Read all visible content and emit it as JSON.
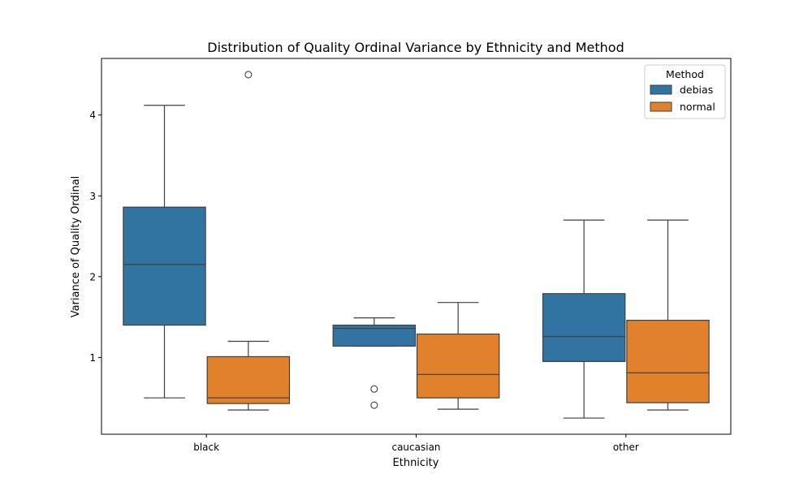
{
  "chart_data": {
    "type": "box",
    "title": "Distribution of Quality Ordinal Variance by Ethnicity and Method",
    "xlabel": "Ethnicity",
    "ylabel": "Variance of Quality Ordinal",
    "categories": [
      "black",
      "caucasian",
      "other"
    ],
    "ylim": [
      0.05,
      4.7
    ],
    "yticks": [
      1,
      2,
      3,
      4
    ],
    "legend": {
      "title": "Method",
      "position": "top-right"
    },
    "series": [
      {
        "name": "debias",
        "color": "#3274a1",
        "boxes": [
          {
            "whisker_low": 0.5,
            "q1": 1.4,
            "median": 2.15,
            "q3": 2.86,
            "whisker_high": 4.12,
            "outliers": []
          },
          {
            "whisker_low": 1.14,
            "q1": 1.14,
            "median": 1.36,
            "q3": 1.4,
            "whisker_high": 1.49,
            "outliers": [
              0.61,
              0.41
            ]
          },
          {
            "whisker_low": 0.25,
            "q1": 0.95,
            "median": 1.26,
            "q3": 1.79,
            "whisker_high": 2.7,
            "outliers": []
          }
        ]
      },
      {
        "name": "normal",
        "color": "#e1812c",
        "boxes": [
          {
            "whisker_low": 0.35,
            "q1": 0.43,
            "median": 0.5,
            "q3": 1.01,
            "whisker_high": 1.2,
            "outliers": [
              4.5
            ]
          },
          {
            "whisker_low": 0.36,
            "q1": 0.5,
            "median": 0.79,
            "q3": 1.29,
            "whisker_high": 1.68,
            "outliers": []
          },
          {
            "whisker_low": 0.35,
            "q1": 0.44,
            "median": 0.81,
            "q3": 1.46,
            "whisker_high": 2.7,
            "outliers": []
          }
        ]
      }
    ]
  }
}
